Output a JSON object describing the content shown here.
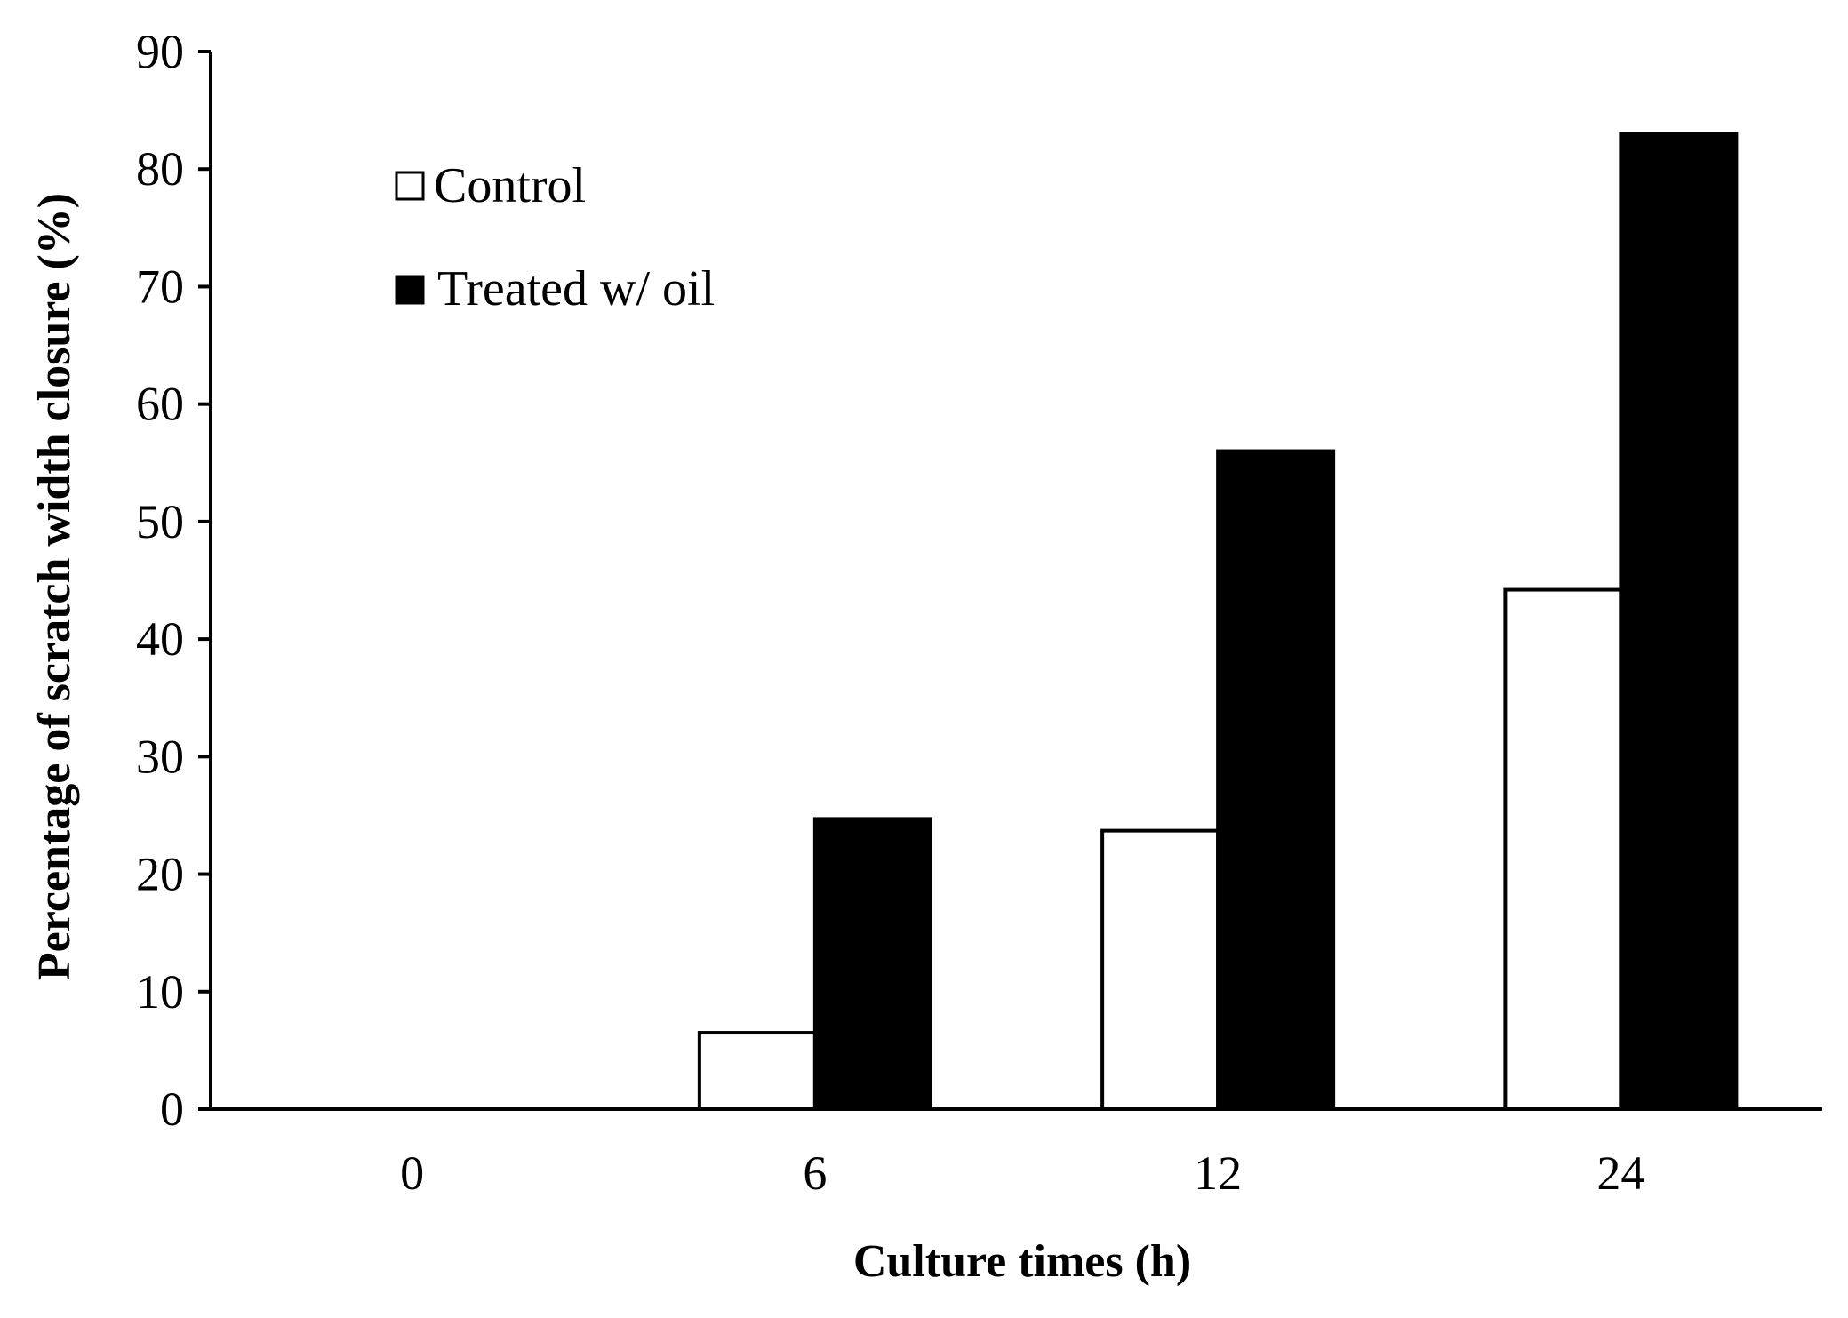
{
  "chart_data": {
    "type": "bar",
    "categories": [
      "0",
      "6",
      "12",
      "24"
    ],
    "series": [
      {
        "name": "Control",
        "values": [
          0,
          6.5,
          23.7,
          44.2
        ],
        "color": "#ffffff",
        "stroke": "#000000"
      },
      {
        "name": "Treated w/ oil",
        "values": [
          0,
          24.7,
          56,
          83
        ],
        "color": "#000000",
        "stroke": "#000000"
      }
    ],
    "title": "",
    "xlabel": "Culture times (h)",
    "ylabel": "Percentage of scratch width closure (%)",
    "ylim": [
      0,
      90
    ],
    "yticks": [
      "0",
      "10",
      "20",
      "30",
      "40",
      "50",
      "60",
      "70",
      "80",
      "90"
    ],
    "grid": false,
    "legend_position": "top-left"
  }
}
